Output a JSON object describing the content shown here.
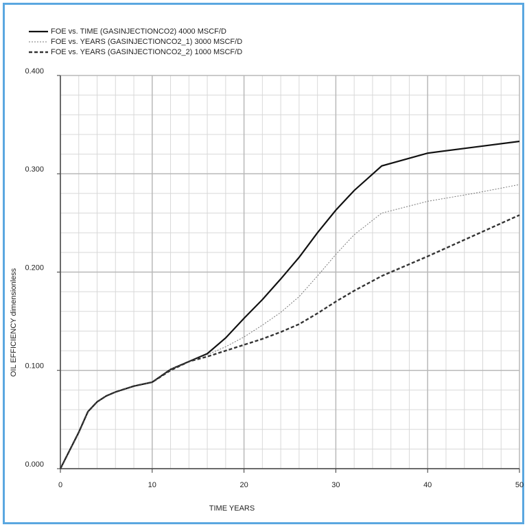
{
  "chart_data": {
    "type": "line",
    "x_label": "TIME   YEARS",
    "y_label": "OIL  EFFICIENCY    dimensionless",
    "x": [
      0,
      2,
      3,
      4,
      5,
      6,
      8,
      10,
      12,
      14,
      16,
      18,
      20,
      22,
      24,
      26,
      28,
      30,
      32,
      35,
      40,
      45,
      50
    ],
    "series": [
      {
        "name": "FOE vs. TIME (GASINJECTIONCO2)        4000 MSCF/D",
        "color": "#111111",
        "style": "solid",
        "values": [
          0,
          0.037,
          0.058,
          0.068,
          0.074,
          0.078,
          0.084,
          0.088,
          0.101,
          0.109,
          0.117,
          0.133,
          0.153,
          0.172,
          0.193,
          0.215,
          0.24,
          0.263,
          0.283,
          0.308,
          0.321,
          0.327,
          0.333
        ]
      },
      {
        "name": "FOE vs. YEARS (GASINJECTIONCO2_1) 3000 MSCF/D",
        "color": "#777777",
        "style": "dotted",
        "values": [
          0,
          0.037,
          0.058,
          0.068,
          0.074,
          0.078,
          0.084,
          0.088,
          0.101,
          0.109,
          0.116,
          0.124,
          0.134,
          0.146,
          0.159,
          0.175,
          0.196,
          0.218,
          0.238,
          0.26,
          0.272,
          0.28,
          0.289
        ]
      },
      {
        "name": "FOE vs. YEARS (GASINJECTIONCO2_2) 1000 MSCF/D",
        "color": "#333333",
        "style": "dashed",
        "values": [
          0,
          0.037,
          0.058,
          0.068,
          0.074,
          0.078,
          0.084,
          0.088,
          0.1,
          0.109,
          0.114,
          0.12,
          0.126,
          0.132,
          0.139,
          0.147,
          0.158,
          0.17,
          0.181,
          0.196,
          0.216,
          0.237,
          0.258
        ]
      }
    ],
    "xlim": [
      0,
      50
    ],
    "ylim": [
      0,
      0.4
    ],
    "xticks": [
      0,
      10,
      20,
      30,
      40,
      50
    ],
    "yticks": [
      {
        "value": 0,
        "label": "0.000"
      },
      {
        "value": 0.1,
        "label": "0.100"
      },
      {
        "value": 0.2,
        "label": "0.200"
      },
      {
        "value": 0.3,
        "label": "0.300"
      },
      {
        "value": 0.4,
        "label": "0.400"
      }
    ],
    "grid": true,
    "minor_grid_divisions": 5,
    "legend": "top-left"
  }
}
